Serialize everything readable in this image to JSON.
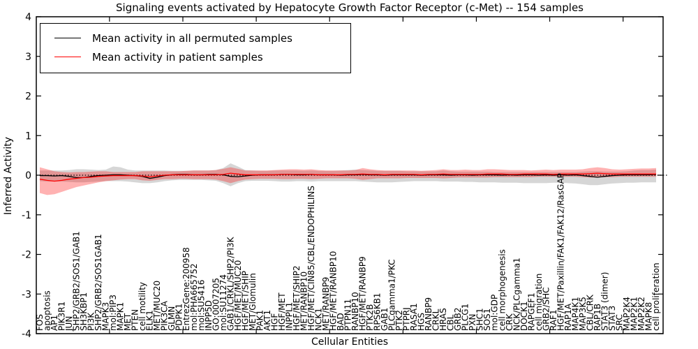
{
  "title": "Signaling events activated by Hepatocyte Growth Factor Receptor (c-Met) -- 154 samples",
  "legend": {
    "items": [
      {
        "label": "Mean activity in all permuted samples",
        "color": "#000000"
      },
      {
        "label": "Mean activity in patient samples",
        "color": "#ff0000"
      }
    ]
  },
  "chart_data": {
    "type": "line",
    "title": "Signaling events activated by Hepatocyte Growth Factor Receptor (c-Met) -- 154 samples",
    "xlabel": "Cellular Entities",
    "ylabel": "Inferred Activity",
    "ylim": [
      -4,
      4
    ],
    "grid": false,
    "legend_position": "upper left",
    "zero_line_style": "dotted",
    "yticks": [
      {
        "value": 4,
        "label": "4"
      },
      {
        "value": 3,
        "label": "3"
      },
      {
        "value": 2,
        "label": "2"
      },
      {
        "value": 1,
        "label": "1"
      },
      {
        "value": 0,
        "label": "0"
      },
      {
        "value": -1,
        "label": "-1"
      },
      {
        "value": -2,
        "label": "-2"
      },
      {
        "value": -3,
        "label": "-3"
      },
      {
        "value": -4,
        "label": "-4"
      }
    ],
    "categories": [
      "FOS",
      "apoptosis",
      "AP1",
      "PIK3R1",
      "JUN",
      "SHP2/GRB2/SOS1/GAB1",
      "SH3KBP1",
      "PI3K",
      "SHP2/GRB2/SOS1GAB1",
      "MAPK3",
      "mol:PIP3",
      "MAPK1",
      "MET",
      "PTEN",
      "cell motility",
      "ELK1",
      "MET/MUC20",
      "PIK3CA",
      "GLMN",
      "PDPK1",
      "EntrezGene:200958",
      "mol:PHA665752",
      "mol:SU5416",
      "INPP5D",
      "GO:0007205",
      "mol:SU11274",
      "GAB1/CRKL/SHP2/PI3K",
      "HGF/MET/MUC20",
      "HGF/MET/SHIP",
      "MET/Glomulin",
      "PAK1",
      "AKT1",
      "HGF",
      "HGF/MET",
      "INPPL1",
      "HGF/MET/SHIP2",
      "MET/RANBP10",
      "HGF/MET/CIN85/CBL/ENDOPHILINS",
      "NCK1",
      "MET/RANBP9",
      "HGF/MET/RANBP10",
      "BAD",
      "PTPN11",
      "RANBP10",
      "HGF/MET/RANBP9",
      "PTK2B",
      "RPS6KB1",
      "GAB1",
      "PLCgamma1/PKC",
      "PTK2",
      "PTPRJ",
      "RASA1",
      "HGS",
      "RANBP9",
      "CRKL",
      "HRAS",
      "CBL",
      "GRB2",
      "PLCG1",
      "PXN",
      "SHC1",
      "SOS1",
      "mol:GDP",
      "cell morphogenesis",
      "CRK",
      "NCK/PLCgamma1",
      "DOCK1",
      "RAPGEF1",
      "cell migration",
      "GRB2/SHC",
      "RAF1",
      "HGF/MET/Paxillin/FAK1/FAK12/RasGAP",
      "RAP1A",
      "MAP4K1",
      "MAP3K5",
      "CBL/CRK",
      "RAP1B",
      "STAT3 (dimer)",
      "STAT3",
      "SRC",
      "MAP2K4",
      "MAP2K1",
      "MAP2K2",
      "MAPK8",
      "cell proliferation"
    ],
    "series": [
      {
        "name": "Mean activity in all permuted samples",
        "color": "#000000",
        "values": [
          -0.01,
          -0.01,
          -0.02,
          -0.01,
          -0.03,
          -0.06,
          -0.06,
          -0.03,
          -0.01,
          0.0,
          0.01,
          0.01,
          0.0,
          -0.01,
          -0.03,
          -0.08,
          -0.05,
          -0.01,
          0.01,
          0.02,
          0.02,
          0.01,
          0.01,
          0.02,
          0.02,
          0.01,
          -0.03,
          -0.04,
          -0.02,
          0.0,
          0.01,
          0.01,
          0.01,
          0.02,
          0.02,
          0.01,
          0.01,
          0.02,
          0.01,
          0.01,
          0.01,
          0.0,
          0.01,
          0.01,
          0.02,
          0.01,
          0.01,
          0.0,
          0.01,
          0.01,
          0.01,
          0.01,
          0.0,
          0.01,
          0.01,
          0.01,
          0.0,
          0.01,
          0.01,
          0.0,
          0.01,
          0.01,
          0.01,
          0.0,
          0.01,
          0.0,
          0.01,
          0.01,
          0.0,
          0.01,
          0.0,
          0.01,
          0.0,
          0.01,
          -0.01,
          -0.03,
          -0.05,
          -0.03,
          -0.01,
          0.0,
          0.01,
          0.01,
          0.01,
          0.01,
          0.02
        ]
      },
      {
        "name": "Mean activity in patient samples",
        "color": "#ff0000",
        "values": [
          -0.1,
          -0.13,
          -0.15,
          -0.13,
          -0.1,
          -0.08,
          -0.06,
          -0.05,
          -0.03,
          -0.02,
          -0.01,
          -0.01,
          -0.01,
          -0.01,
          -0.02,
          -0.04,
          -0.02,
          0.0,
          0.01,
          0.01,
          0.01,
          0.01,
          0.01,
          0.01,
          0.01,
          0.02,
          0.05,
          0.03,
          0.01,
          0.01,
          0.01,
          0.01,
          0.01,
          0.02,
          0.02,
          0.02,
          0.02,
          0.02,
          0.01,
          0.01,
          0.01,
          0.01,
          0.02,
          0.02,
          0.03,
          0.02,
          0.02,
          0.01,
          0.02,
          0.02,
          0.02,
          0.02,
          0.01,
          0.02,
          0.02,
          0.03,
          0.02,
          0.02,
          0.02,
          0.02,
          0.02,
          0.03,
          0.03,
          0.03,
          0.02,
          0.02,
          0.03,
          0.03,
          0.03,
          0.03,
          0.02,
          0.03,
          0.03,
          0.03,
          0.03,
          0.04,
          0.05,
          0.04,
          0.03,
          0.03,
          0.03,
          0.03,
          0.03,
          0.03,
          0.03
        ]
      }
    ],
    "bands": [
      {
        "name": "permuted-samples-band",
        "color": "#787878",
        "opacity": 0.3,
        "upper": [
          0.12,
          0.12,
          0.12,
          0.12,
          0.13,
          0.15,
          0.15,
          0.14,
          0.13,
          0.14,
          0.22,
          0.2,
          0.14,
          0.12,
          0.12,
          0.12,
          0.12,
          0.12,
          0.11,
          0.11,
          0.11,
          0.12,
          0.12,
          0.12,
          0.13,
          0.18,
          0.3,
          0.22,
          0.13,
          0.12,
          0.11,
          0.11,
          0.12,
          0.12,
          0.12,
          0.12,
          0.11,
          0.12,
          0.11,
          0.11,
          0.11,
          0.12,
          0.13,
          0.14,
          0.13,
          0.12,
          0.11,
          0.11,
          0.11,
          0.11,
          0.1,
          0.1,
          0.1,
          0.1,
          0.1,
          0.12,
          0.1,
          0.09,
          0.09,
          0.09,
          0.09,
          0.09,
          0.08,
          0.08,
          0.08,
          0.08,
          0.08,
          0.08,
          0.08,
          0.08,
          0.08,
          0.08,
          0.08,
          0.08,
          0.09,
          0.1,
          0.1,
          0.09,
          0.09,
          0.09,
          0.1,
          0.12,
          0.13,
          0.13,
          0.14
        ],
        "lower": [
          -0.15,
          -0.16,
          -0.16,
          -0.16,
          -0.17,
          -0.18,
          -0.18,
          -0.17,
          -0.16,
          -0.15,
          -0.15,
          -0.15,
          -0.16,
          -0.18,
          -0.2,
          -0.2,
          -0.18,
          -0.15,
          -0.13,
          -0.12,
          -0.12,
          -0.12,
          -0.12,
          -0.13,
          -0.14,
          -0.2,
          -0.28,
          -0.2,
          -0.15,
          -0.14,
          -0.14,
          -0.14,
          -0.15,
          -0.16,
          -0.16,
          -0.15,
          -0.15,
          -0.16,
          -0.15,
          -0.15,
          -0.15,
          -0.15,
          -0.15,
          -0.15,
          -0.16,
          -0.17,
          -0.18,
          -0.18,
          -0.18,
          -0.17,
          -0.16,
          -0.15,
          -0.15,
          -0.15,
          -0.15,
          -0.16,
          -0.16,
          -0.16,
          -0.17,
          -0.17,
          -0.18,
          -0.18,
          -0.18,
          -0.19,
          -0.19,
          -0.19,
          -0.2,
          -0.2,
          -0.2,
          -0.2,
          -0.19,
          -0.19,
          -0.2,
          -0.21,
          -0.23,
          -0.25,
          -0.25,
          -0.23,
          -0.21,
          -0.2,
          -0.19,
          -0.19,
          -0.18,
          -0.18,
          -0.18
        ]
      },
      {
        "name": "patient-samples-band",
        "color": "#ff0000",
        "opacity": 0.3,
        "upper": [
          0.2,
          0.15,
          0.1,
          0.08,
          0.07,
          0.08,
          0.08,
          0.09,
          0.1,
          0.1,
          0.08,
          0.08,
          0.08,
          0.08,
          0.1,
          0.1,
          0.1,
          0.1,
          0.1,
          0.1,
          0.11,
          0.12,
          0.12,
          0.12,
          0.13,
          0.16,
          0.2,
          0.16,
          0.12,
          0.12,
          0.12,
          0.12,
          0.13,
          0.14,
          0.15,
          0.15,
          0.14,
          0.15,
          0.13,
          0.12,
          0.12,
          0.12,
          0.12,
          0.13,
          0.18,
          0.15,
          0.13,
          0.12,
          0.12,
          0.12,
          0.12,
          0.12,
          0.11,
          0.12,
          0.13,
          0.15,
          0.13,
          0.13,
          0.14,
          0.13,
          0.13,
          0.15,
          0.15,
          0.14,
          0.13,
          0.13,
          0.13,
          0.12,
          0.13,
          0.14,
          0.13,
          0.14,
          0.14,
          0.14,
          0.15,
          0.18,
          0.2,
          0.18,
          0.15,
          0.14,
          0.15,
          0.16,
          0.17,
          0.17,
          0.18
        ],
        "lower": [
          -0.45,
          -0.5,
          -0.48,
          -0.42,
          -0.36,
          -0.3,
          -0.26,
          -0.22,
          -0.18,
          -0.15,
          -0.13,
          -0.11,
          -0.1,
          -0.1,
          -0.13,
          -0.14,
          -0.12,
          -0.1,
          -0.1,
          -0.09,
          -0.09,
          -0.1,
          -0.1,
          -0.1,
          -0.11,
          -0.15,
          -0.2,
          -0.15,
          -0.11,
          -0.1,
          -0.09,
          -0.09,
          -0.09,
          -0.1,
          -0.1,
          -0.09,
          -0.09,
          -0.1,
          -0.09,
          -0.08,
          -0.08,
          -0.08,
          -0.08,
          -0.09,
          -0.12,
          -0.1,
          -0.08,
          -0.08,
          -0.08,
          -0.08,
          -0.07,
          -0.07,
          -0.07,
          -0.07,
          -0.07,
          -0.08,
          -0.07,
          -0.06,
          -0.06,
          -0.06,
          -0.06,
          -0.06,
          -0.05,
          -0.05,
          -0.05,
          -0.05,
          -0.05,
          -0.05,
          -0.04,
          -0.04,
          -0.04,
          -0.04,
          -0.04,
          -0.04,
          -0.05,
          -0.06,
          -0.06,
          -0.05,
          -0.05,
          -0.04,
          -0.04,
          -0.04,
          -0.04,
          -0.04,
          -0.04
        ]
      }
    ]
  }
}
